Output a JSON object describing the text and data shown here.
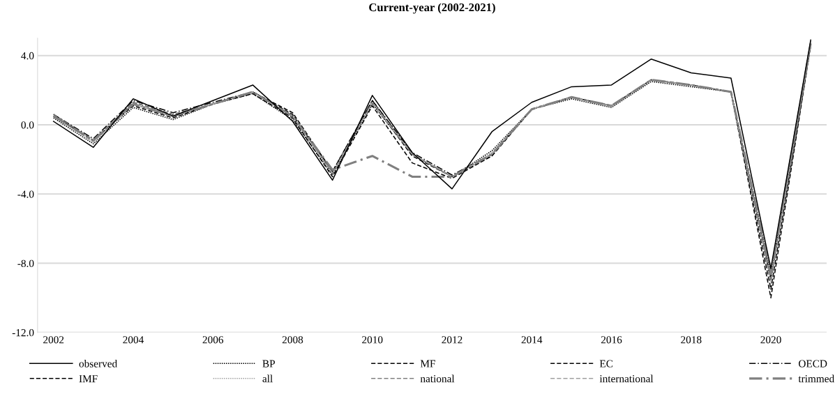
{
  "chart_data": {
    "type": "line",
    "title": "Current-year (2002-2021)",
    "x": [
      2002,
      2003,
      2004,
      2005,
      2006,
      2007,
      2008,
      2009,
      2010,
      2011,
      2012,
      2013,
      2014,
      2015,
      2016,
      2017,
      2018,
      2019,
      2020,
      2021
    ],
    "series": [
      {
        "name": "observed",
        "color": "#000000",
        "line_style": "solid",
        "values": [
          0.2,
          -1.3,
          1.5,
          0.5,
          1.4,
          2.3,
          0.2,
          -3.2,
          1.7,
          -1.6,
          -3.7,
          -0.4,
          1.3,
          2.2,
          2.3,
          3.8,
          3.0,
          2.7,
          -8.3,
          4.9
        ]
      },
      {
        "name": "BP",
        "color": "#000000",
        "line_style": "dotted",
        "values": [
          0.4,
          -1.1,
          1.0,
          0.3,
          1.2,
          1.8,
          0.3,
          -2.9,
          1.2,
          -1.7,
          -3.0,
          -1.5,
          0.9,
          1.5,
          1.0,
          2.5,
          2.2,
          1.9,
          -8.6,
          4.8
        ]
      },
      {
        "name": "MF",
        "color": "#000000",
        "line_style": "dashed",
        "values": [
          0.6,
          -0.9,
          1.3,
          0.6,
          1.2,
          1.9,
          0.7,
          -2.7,
          1.4,
          -1.7,
          -3.0,
          -1.8,
          0.9,
          1.6,
          1.1,
          2.6,
          2.3,
          1.9,
          -9.0,
          4.7
        ]
      },
      {
        "name": "EC",
        "color": "#000000",
        "line_style": "dashed",
        "values": [
          0.5,
          -0.9,
          1.2,
          0.5,
          1.2,
          1.9,
          0.6,
          -2.8,
          1.3,
          -1.8,
          -3.0,
          -1.7,
          0.9,
          1.6,
          1.1,
          2.6,
          2.3,
          1.9,
          -10.0,
          4.6
        ]
      },
      {
        "name": "OECD",
        "color": "#000000",
        "line_style": "dashdot",
        "values": [
          0.6,
          -0.8,
          1.4,
          0.7,
          1.3,
          1.9,
          0.5,
          -2.7,
          1.4,
          -1.6,
          -2.9,
          -1.7,
          0.9,
          1.6,
          1.1,
          2.6,
          2.3,
          1.9,
          -8.8,
          4.7
        ]
      },
      {
        "name": "IMF",
        "color": "#000000",
        "line_style": "dashed",
        "values": [
          0.5,
          -0.9,
          1.1,
          0.4,
          1.2,
          1.8,
          0.4,
          -3.0,
          1.1,
          -2.2,
          -3.1,
          -1.8,
          0.9,
          1.6,
          1.1,
          2.6,
          2.3,
          1.9,
          -9.5,
          4.6
        ]
      },
      {
        "name": "all",
        "color": "#a0a0a0",
        "line_style": "dotted",
        "values": [
          0.5,
          -1.0,
          1.2,
          0.5,
          1.2,
          1.9,
          0.5,
          -2.8,
          1.3,
          -1.7,
          -3.0,
          -1.6,
          0.9,
          1.6,
          1.0,
          2.6,
          2.3,
          1.9,
          -8.7,
          4.7
        ]
      },
      {
        "name": "national",
        "color": "#808080",
        "line_style": "dashed",
        "values": [
          0.6,
          -0.9,
          1.3,
          0.6,
          1.2,
          1.9,
          0.5,
          -2.8,
          1.3,
          -1.7,
          -3.0,
          -1.7,
          0.9,
          1.6,
          1.1,
          2.6,
          2.3,
          1.9,
          -8.9,
          4.7
        ]
      },
      {
        "name": "international",
        "color": "#a0a0a0",
        "line_style": "dashed",
        "values": [
          0.5,
          -1.0,
          1.2,
          0.5,
          1.2,
          1.9,
          0.5,
          -2.8,
          1.3,
          -1.7,
          -3.0,
          -1.7,
          0.9,
          1.6,
          1.1,
          2.6,
          2.3,
          1.9,
          -9.2,
          4.7
        ]
      },
      {
        "name": "trimmed",
        "color": "#808080",
        "line_style": "dashdot",
        "values": [
          0.5,
          -0.9,
          1.2,
          0.5,
          1.2,
          1.9,
          0.5,
          -2.6,
          -1.8,
          -3.0,
          -3.0,
          -1.7,
          0.9,
          1.6,
          1.1,
          2.6,
          2.3,
          1.9,
          -8.6,
          4.7
        ]
      }
    ],
    "xlim": [
      2001.6,
      2021.4
    ],
    "xticks": [
      2002,
      2004,
      2006,
      2008,
      2010,
      2012,
      2014,
      2016,
      2018,
      2020
    ],
    "ylim": [
      -12.0,
      5.0
    ],
    "yticks": [
      {
        "value": -12,
        "label": "-12.0"
      },
      {
        "value": -8,
        "label": "-8.0"
      },
      {
        "value": -4,
        "label": "-4.0"
      },
      {
        "value": 0,
        "label": "0.0"
      },
      {
        "value": 4,
        "label": "4.0"
      }
    ],
    "grid": "y",
    "legend": "bottom",
    "marker": "none"
  }
}
